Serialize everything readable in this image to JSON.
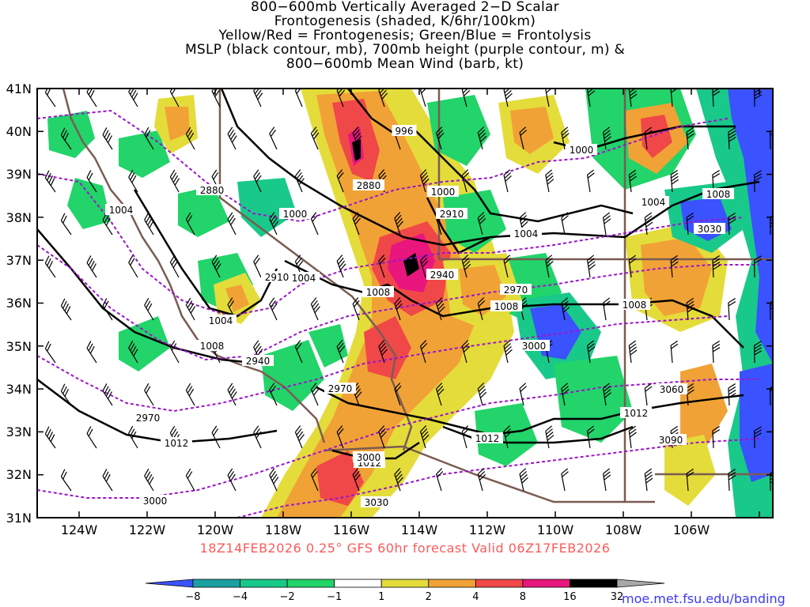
{
  "title_lines": [
    "800−600mb Vertically Averaged 2−D Scalar",
    "Frontogenesis (shaded, K/6hr/100km)",
    "Yellow/Red = Frontogenesis;  Green/Blue = Frontolysis",
    "MSLP (black contour, mb), 700mb height (purple contour, m) &",
    "800−600mb Mean Wind (barb, kt)"
  ],
  "lat_labels": [
    "41N",
    "40N",
    "39N",
    "38N",
    "37N",
    "36N",
    "35N",
    "34N",
    "33N",
    "32N",
    "31N"
  ],
  "lon_labels": [
    "124W",
    "122W",
    "120W",
    "118W",
    "116W",
    "114W",
    "112W",
    "110W",
    "108W",
    "106W"
  ],
  "valid_text": "18Z14FEB2026 0.25° GFS 60hr forecast Valid 06Z17FEB2026",
  "credit": "moe.met.fsu.edu/banding",
  "colorbar": {
    "ticks": [
      "−8",
      "−4",
      "−2",
      "−1",
      "1",
      "2",
      "4",
      "8",
      "16",
      "32"
    ],
    "colors": [
      "#3a52ff",
      "#1aa0a0",
      "#19c98a",
      "#22d46a",
      "#ffffff",
      "#e4dc3a",
      "#f1a236",
      "#f04848",
      "#e8167d",
      "#000000",
      "#a8a8a8"
    ]
  },
  "pressure_labels": [
    "996",
    "1000",
    "1000",
    "1000",
    "1004",
    "1004",
    "1004",
    "1004",
    "1004",
    "1008",
    "1008",
    "1008",
    "1008",
    "1008",
    "1012",
    "1012",
    "1012",
    "1012"
  ],
  "height_labels": [
    "2880",
    "2880",
    "2910",
    "2910",
    "2940",
    "2940",
    "2970",
    "2970",
    "2970",
    "3000",
    "3000",
    "3030",
    "3030",
    "3060",
    "3090",
    "3000"
  ],
  "legend": {
    "frontogenesis": "Yellow/Red",
    "frontolysis": "Green/Blue",
    "mslp_color": "#000000",
    "height_color": "#9b16c9",
    "border_color": "#7a5c52"
  }
}
